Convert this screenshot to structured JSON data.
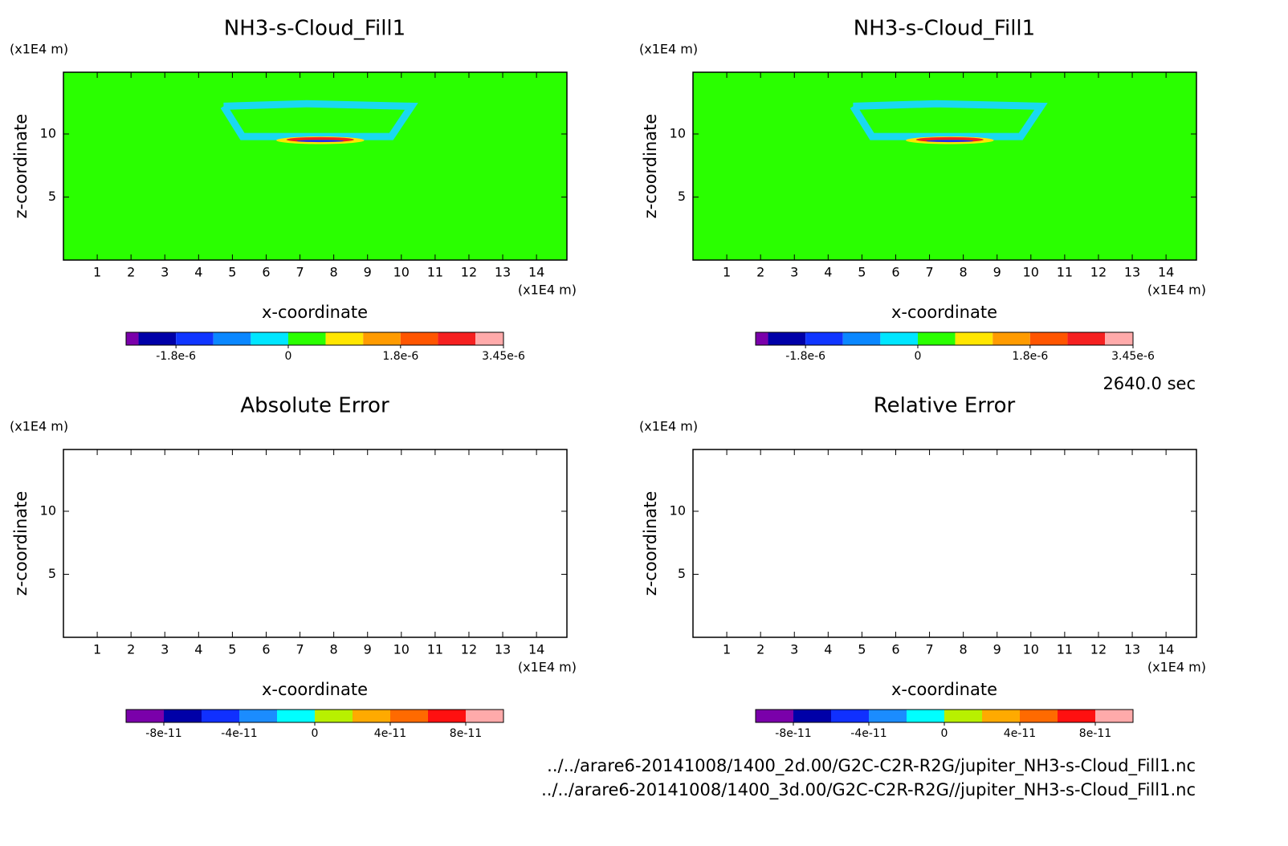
{
  "chart_data": [
    {
      "type": "contour",
      "title": "NH3-s-Cloud_Fill1",
      "x_label": "x-coordinate",
      "y_label": "z-coordinate",
      "x_unit": "(x1E4 m)",
      "y_unit": "(x1E4 m)",
      "xlim": [
        0,
        14.9
      ],
      "ylim": [
        0,
        14.9
      ],
      "xticks": [
        1,
        2,
        3,
        4,
        5,
        6,
        7,
        8,
        9,
        10,
        11,
        12,
        13,
        14
      ],
      "yticks": [
        5,
        10
      ],
      "background": "#2aff00",
      "features": [
        {
          "shape": "band",
          "color": "#1ad9f0",
          "x": [
            4.74,
            7.2,
            10.3,
            9.7,
            5.3,
            4.74
          ],
          "z": [
            12.2,
            12.4,
            12.2,
            9.8,
            9.8,
            12.2
          ]
        },
        {
          "shape": "ellipse",
          "color": "#ffe600",
          "cx": 7.6,
          "cz": 9.5,
          "rx": 1.3,
          "rz": 0.3
        },
        {
          "shape": "ellipse",
          "color": "#f52020",
          "cx": 7.6,
          "cz": 9.55,
          "rx": 1.0,
          "rz": 0.2
        },
        {
          "shape": "ellipse",
          "color": "#0f35ff",
          "cx": 7.6,
          "cz": 9.45,
          "rx": 0.7,
          "rz": 0.08
        }
      ],
      "colorbar": {
        "bounds": [
          -2.6e-06,
          -2.4e-06,
          -1.8e-06,
          -1.2e-06,
          -6e-07,
          0,
          6e-07,
          1.2e-06,
          1.8e-06,
          2.4e-06,
          3e-06,
          3.45e-06
        ],
        "colors": [
          "#7a00aa",
          "#0000a8",
          "#0f35ff",
          "#0a87ff",
          "#00e6ff",
          "#2aff00",
          "#ffe600",
          "#ff9b00",
          "#ff5500",
          "#f52020",
          "#ffaaaa"
        ],
        "ticks": [
          {
            "value": -1.8e-06,
            "label": "-1.8e-6"
          },
          0,
          {
            "value": 1.8e-06,
            "label": "1.8e-6"
          },
          {
            "value": 3.45e-06,
            "label": "3.45e-6"
          }
        ]
      }
    },
    {
      "type": "contour",
      "title": "NH3-s-Cloud_Fill1",
      "x_label": "x-coordinate",
      "y_label": "z-coordinate",
      "x_unit": "(x1E4 m)",
      "y_unit": "(x1E4 m)",
      "xlim": [
        0,
        14.9
      ],
      "ylim": [
        0,
        14.9
      ],
      "xticks": [
        1,
        2,
        3,
        4,
        5,
        6,
        7,
        8,
        9,
        10,
        11,
        12,
        13,
        14
      ],
      "yticks": [
        5,
        10
      ],
      "background": "#2aff00",
      "features": [
        {
          "shape": "band",
          "color": "#1ad9f0",
          "x": [
            4.74,
            7.2,
            10.3,
            9.7,
            5.3,
            4.74
          ],
          "z": [
            12.2,
            12.4,
            12.2,
            9.8,
            9.8,
            12.2
          ]
        },
        {
          "shape": "ellipse",
          "color": "#ffe600",
          "cx": 7.6,
          "cz": 9.5,
          "rx": 1.3,
          "rz": 0.3
        },
        {
          "shape": "ellipse",
          "color": "#f52020",
          "cx": 7.6,
          "cz": 9.55,
          "rx": 1.0,
          "rz": 0.2
        },
        {
          "shape": "ellipse",
          "color": "#0f35ff",
          "cx": 7.6,
          "cz": 9.45,
          "rx": 0.7,
          "rz": 0.08
        }
      ],
      "colorbar": {
        "bounds": [
          -2.6e-06,
          -2.4e-06,
          -1.8e-06,
          -1.2e-06,
          -6e-07,
          0,
          6e-07,
          1.2e-06,
          1.8e-06,
          2.4e-06,
          3e-06,
          3.45e-06
        ],
        "colors": [
          "#7a00aa",
          "#0000a8",
          "#0f35ff",
          "#0a87ff",
          "#00e6ff",
          "#2aff00",
          "#ffe600",
          "#ff9b00",
          "#ff5500",
          "#f52020",
          "#ffaaaa"
        ],
        "ticks": [
          {
            "value": -1.8e-06,
            "label": "-1.8e-6"
          },
          0,
          {
            "value": 1.8e-06,
            "label": "1.8e-6"
          },
          {
            "value": 3.45e-06,
            "label": "3.45e-6"
          }
        ]
      }
    },
    {
      "type": "contour",
      "title": "Absolute Error",
      "x_label": "x-coordinate",
      "y_label": "z-coordinate",
      "x_unit": "(x1E4 m)",
      "y_unit": "(x1E4 m)",
      "xlim": [
        0,
        14.9
      ],
      "ylim": [
        0,
        14.9
      ],
      "xticks": [
        1,
        2,
        3,
        4,
        5,
        6,
        7,
        8,
        9,
        10,
        11,
        12,
        13,
        14
      ],
      "yticks": [
        5,
        10
      ],
      "background": "#ffffff",
      "features": [],
      "colorbar": {
        "bounds": [
          -1e-10,
          -8e-11,
          -6e-11,
          -4e-11,
          -2e-11,
          0,
          2e-11,
          4e-11,
          6e-11,
          8e-11,
          1e-10
        ],
        "colors": [
          "#7a00aa",
          "#0000a8",
          "#1030ff",
          "#1b8cff",
          "#00ffff",
          "#b8f000",
          "#ffaa00",
          "#ff6a00",
          "#ff1010",
          "#ffaaaa"
        ],
        "ticks": [
          -8e-11,
          -4e-11,
          0,
          4e-11,
          8e-11
        ]
      }
    },
    {
      "type": "contour",
      "title": "Relative Error",
      "x_label": "x-coordinate",
      "y_label": "z-coordinate",
      "x_unit": "(x1E4 m)",
      "y_unit": "(x1E4 m)",
      "xlim": [
        0,
        14.9
      ],
      "ylim": [
        0,
        14.9
      ],
      "xticks": [
        1,
        2,
        3,
        4,
        5,
        6,
        7,
        8,
        9,
        10,
        11,
        12,
        13,
        14
      ],
      "yticks": [
        5,
        10
      ],
      "background": "#ffffff",
      "features": [],
      "colorbar": {
        "bounds": [
          -1e-10,
          -8e-11,
          -6e-11,
          -4e-11,
          -2e-11,
          0,
          2e-11,
          4e-11,
          6e-11,
          8e-11,
          1e-10
        ],
        "colors": [
          "#7a00aa",
          "#0000a8",
          "#1030ff",
          "#1b8cff",
          "#00ffff",
          "#b8f000",
          "#ffaa00",
          "#ff6a00",
          "#ff1010",
          "#ffaaaa"
        ],
        "ticks": [
          -8e-11,
          -4e-11,
          0,
          4e-11,
          8e-11
        ]
      }
    }
  ],
  "time": "2640.0 sec",
  "files": [
    "../../arare6-20141008/1400_2d.00/G2C-C2R-R2G/jupiter_NH3-s-Cloud_Fill1.nc",
    "../../arare6-20141008/1400_3d.00/G2C-C2R-R2G//jupiter_NH3-s-Cloud_Fill1.nc"
  ]
}
